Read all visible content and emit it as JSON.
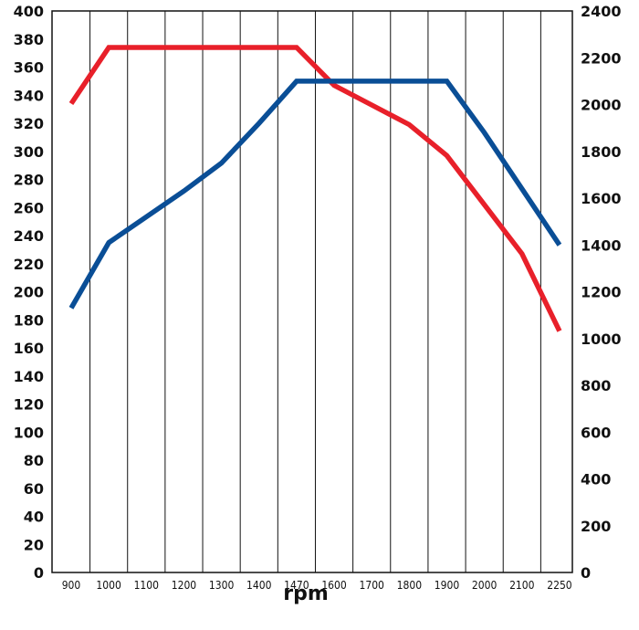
{
  "chart_data": {
    "type": "line",
    "xlabel": "rpm",
    "ylabel": "",
    "ylabel_right": "",
    "categories": [
      "900",
      "1000",
      "1100",
      "1200",
      "1300",
      "1400",
      "1470",
      "1600",
      "1700",
      "1800",
      "1900",
      "2000",
      "2100",
      "2250"
    ],
    "y_left": {
      "lim": [
        0,
        400
      ],
      "ticks": [
        "0",
        "20",
        "40",
        "60",
        "80",
        "100",
        "120",
        "140",
        "160",
        "180",
        "200",
        "220",
        "240",
        "260",
        "280",
        "300",
        "320",
        "340",
        "360",
        "380",
        "400"
      ]
    },
    "y_right": {
      "lim": [
        0,
        2400
      ],
      "ticks": [
        "0",
        "200",
        "400",
        "600",
        "800",
        "1000",
        "1200",
        "1400",
        "1600",
        "1800",
        "2000",
        "2200",
        "2400"
      ]
    },
    "grid": "vertical",
    "series": [
      {
        "color": "#e8202a",
        "axis": "left",
        "points": [
          [
            0,
            334
          ],
          [
            1,
            374
          ],
          [
            2,
            374
          ],
          [
            3,
            374
          ],
          [
            4,
            374
          ],
          [
            5,
            374
          ],
          [
            6,
            374
          ],
          [
            7,
            347
          ],
          [
            8,
            333
          ],
          [
            9,
            319
          ],
          [
            10,
            297
          ],
          [
            11,
            262
          ],
          [
            12,
            227
          ],
          [
            13,
            172
          ]
        ]
      },
      {
        "color": "#0a4e96",
        "axis": "right",
        "points": [
          [
            0,
            1130
          ],
          [
            1,
            1410
          ],
          [
            2,
            1520
          ],
          [
            3,
            1630
          ],
          [
            4,
            1750
          ],
          [
            5,
            1920
          ],
          [
            6,
            2100
          ],
          [
            7,
            2100
          ],
          [
            8,
            2100
          ],
          [
            9,
            2100
          ],
          [
            10,
            2100
          ],
          [
            11,
            1880
          ],
          [
            12,
            1640
          ],
          [
            13,
            1400
          ]
        ]
      }
    ]
  }
}
